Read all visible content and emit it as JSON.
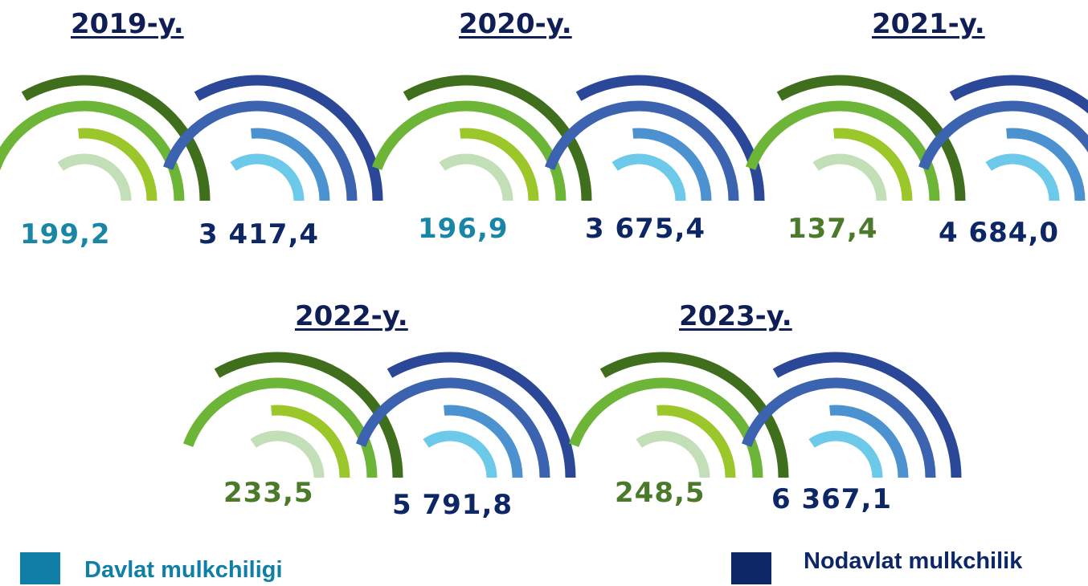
{
  "chart_data": {
    "type": "radial-arcs",
    "unit_note": "",
    "series": [
      {
        "name": "Davlat mulkchiligi",
        "color": "#0f7fa8"
      },
      {
        "name": "Nodavlat mulkchilik",
        "color": "#0d2766"
      }
    ],
    "years": [
      {
        "label": "2019-y.",
        "davlat": "199,2",
        "nodavlat": "3 417,4",
        "davlat_color": "#1a86a6"
      },
      {
        "label": "2020-y.",
        "davlat": "196,9",
        "nodavlat": "3 675,4",
        "davlat_color": "#1a86a6"
      },
      {
        "label": "2021-y.",
        "davlat": "137,4",
        "nodavlat": "4 684,0",
        "davlat_color": "#4a7a2a"
      },
      {
        "label": "2022-y.",
        "davlat": "233,5",
        "nodavlat": "5 791,8",
        "davlat_color": "#4a7a2a"
      },
      {
        "label": "2023-y.",
        "davlat": "248,5",
        "nodavlat": "6 367,1",
        "davlat_color": "#4a7a2a"
      }
    ],
    "green_arc_colors": [
      "#c3dfb8",
      "#9cc72a",
      "#6db537",
      "#3f6e1d"
    ],
    "blue_arc_colors": [
      "#6cc9ea",
      "#4d92d0",
      "#3c63b0",
      "#2b4898"
    ]
  },
  "legend": {
    "davlat_label": "Davlat mulkchiligi",
    "nodavlat_label": "Nodavlat mulkchilik",
    "davlat_color": "#0f7fa8",
    "nodavlat_color": "#0d2766",
    "davlat_text_color": "#0f7fa8",
    "nodavlat_text_color": "#0d2766"
  }
}
